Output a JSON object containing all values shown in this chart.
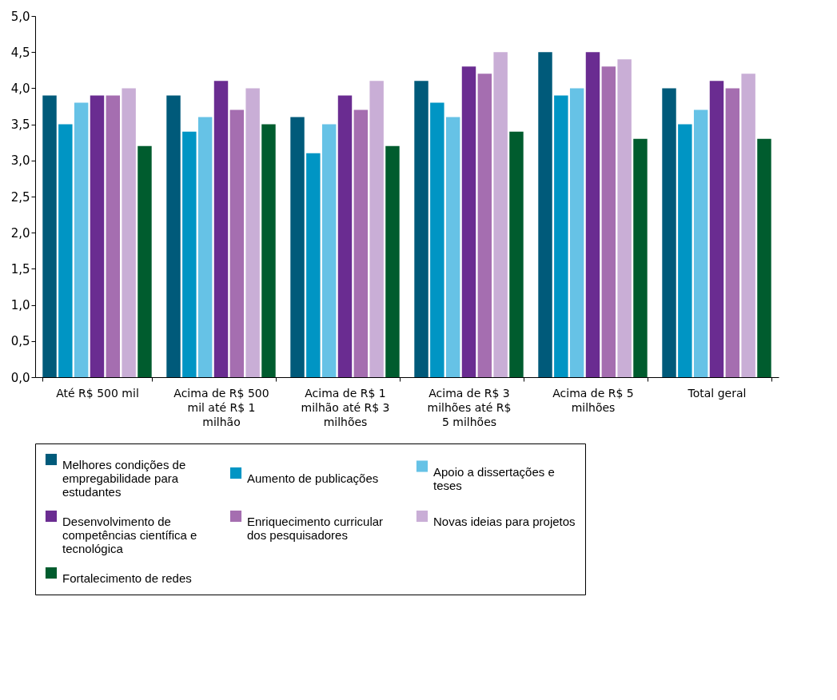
{
  "chart_data": {
    "type": "bar",
    "categories": [
      "Até R$ 500 mil",
      "Acima de R$ 500 mil até R$ 1 milhão",
      "Acima de R$ 1 milhão até R$ 3 milhões",
      "Acima de R$ 3 milhões até R$ 5 milhões",
      "Acima de R$ 5 milhões",
      "Total geral"
    ],
    "series": [
      {
        "name": "Melhores condições de empregabilidade para estudantes",
        "color": "#005a7a",
        "values": [
          3.9,
          3.9,
          3.6,
          4.1,
          4.5,
          4.0
        ]
      },
      {
        "name": "Aumento de publicações",
        "color": "#0095c4",
        "values": [
          3.5,
          3.4,
          3.1,
          3.8,
          3.9,
          3.5
        ]
      },
      {
        "name": "Apoio a dissertações e teses",
        "color": "#66c2e6",
        "values": [
          3.8,
          3.6,
          3.5,
          3.6,
          4.0,
          3.7
        ]
      },
      {
        "name": "Desenvolvimento de competências científica e tecnológica",
        "color": "#6a2c91",
        "values": [
          3.9,
          4.1,
          3.9,
          4.3,
          4.5,
          4.1
        ]
      },
      {
        "name": "Enriquecimento curricular dos pesquisadores",
        "color": "#a56eb0",
        "values": [
          3.9,
          3.7,
          3.7,
          4.2,
          4.3,
          4.0
        ]
      },
      {
        "name": "Novas ideias para projetos",
        "color": "#c9aed6",
        "values": [
          4.0,
          4.0,
          4.1,
          4.5,
          4.4,
          4.2
        ]
      },
      {
        "name": "Fortalecimento de redes",
        "color": "#005c2e",
        "values": [
          3.2,
          3.5,
          3.2,
          3.4,
          3.3,
          3.3
        ]
      }
    ],
    "ylim": [
      0,
      5
    ],
    "yticks": [
      {
        "value": 0,
        "label": "0,0"
      },
      {
        "value": 0.5,
        "label": "0,5"
      },
      {
        "value": 1,
        "label": "1,0"
      },
      {
        "value": 1.5,
        "label": "1,5"
      },
      {
        "value": 2,
        "label": "2,0"
      },
      {
        "value": 2.5,
        "label": "2,5"
      },
      {
        "value": 3,
        "label": "3,0"
      },
      {
        "value": 3.5,
        "label": "3,5"
      },
      {
        "value": 4,
        "label": "4,0"
      },
      {
        "value": 4.5,
        "label": "4,5"
      },
      {
        "value": 5,
        "label": "5,0"
      }
    ],
    "grid": false,
    "legend": "bottom"
  }
}
